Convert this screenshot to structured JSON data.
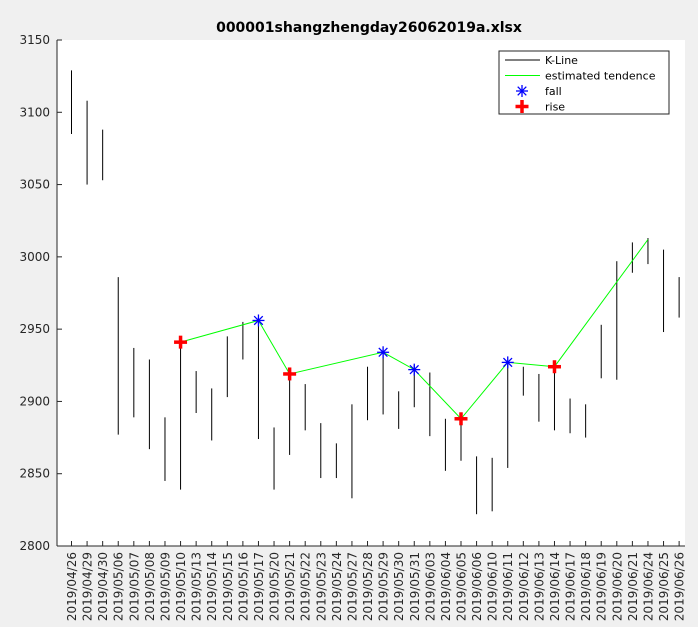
{
  "chart_data": {
    "type": "line",
    "title": "000001shangzhengday26062019a.xlsx",
    "xlabel": "",
    "ylabel": "",
    "ylim": [
      2800,
      3150
    ],
    "yticks": [
      2800,
      2850,
      2900,
      2950,
      3000,
      3050,
      3100,
      3150
    ],
    "grid": false,
    "legend_position": "top-right",
    "categories": [
      "2019/04/26",
      "2019/04/29",
      "2019/04/30",
      "2019/05/06",
      "2019/05/07",
      "2019/05/08",
      "2019/05/09",
      "2019/05/10",
      "2019/05/13",
      "2019/05/14",
      "2019/05/15",
      "2019/05/16",
      "2019/05/17",
      "2019/05/20",
      "2019/05/21",
      "2019/05/22",
      "2019/05/23",
      "2019/05/24",
      "2019/05/27",
      "2019/05/28",
      "2019/05/29",
      "2019/05/30",
      "2019/05/31",
      "2019/06/03",
      "2019/06/04",
      "2019/06/05",
      "2019/06/06",
      "2019/06/10",
      "2019/06/11",
      "2019/06/12",
      "2019/06/13",
      "2019/06/14",
      "2019/06/17",
      "2019/06/18",
      "2019/06/19",
      "2019/06/20",
      "2019/06/21",
      "2019/06/24",
      "2019/06/25",
      "2019/06/26"
    ],
    "series": [
      {
        "name": "K-Line",
        "color": "#000000",
        "low": [
          3085,
          3050,
          3053,
          2877,
          2889,
          2867,
          2845,
          2839,
          2892,
          2873,
          2903,
          2929,
          2874,
          2839,
          2863,
          2880,
          2847,
          2847,
          2833,
          2887,
          2891,
          2881,
          2896,
          2876,
          2852,
          2859,
          2822,
          2824,
          2854,
          2904,
          2886,
          2880,
          2878,
          2875,
          2916,
          2915,
          2989,
          2995,
          2948,
          2958
        ],
        "high": [
          3129,
          3108,
          3088,
          2986,
          2937,
          2929,
          2889,
          2941,
          2921,
          2909,
          2945,
          2955,
          2958,
          2882,
          2920,
          2912,
          2885,
          2871,
          2898,
          2924,
          2935,
          2907,
          2925,
          2920,
          2888,
          2891,
          2862,
          2861,
          2928,
          2924,
          2919,
          2926,
          2902,
          2898,
          2953,
          2997,
          3010,
          3013,
          3005,
          2986
        ]
      },
      {
        "name": "estimated tendence",
        "color": "#00ff00",
        "x": [
          "2019/05/10",
          "2019/05/17",
          "2019/05/21",
          "2019/05/29",
          "2019/05/31",
          "2019/06/05",
          "2019/06/11",
          "2019/06/14",
          "2019/06/24"
        ],
        "values": [
          2941,
          2956,
          2919,
          2934,
          2922,
          2888,
          2927,
          2924,
          3012
        ]
      },
      {
        "name": "fall",
        "color": "#0000ff",
        "marker": "asterisk",
        "x": [
          "2019/05/17",
          "2019/05/29",
          "2019/05/31",
          "2019/06/11"
        ],
        "values": [
          2956,
          2934,
          2922,
          2927
        ]
      },
      {
        "name": "rise",
        "color": "#ff0000",
        "marker": "plus",
        "x": [
          "2019/05/10",
          "2019/05/21",
          "2019/06/05",
          "2019/06/14"
        ],
        "values": [
          2941,
          2919,
          2888,
          2924
        ]
      }
    ]
  }
}
